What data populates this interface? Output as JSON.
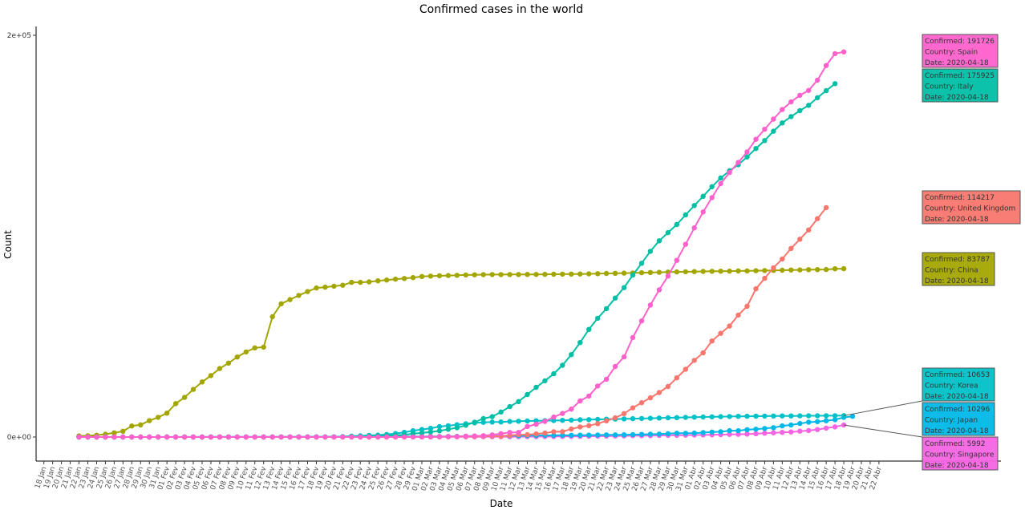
{
  "chart_data": {
    "type": "line",
    "title": "Confirmed cases in the world",
    "xlabel": "Date",
    "ylabel": "Count",
    "ylim": [
      -12000,
      205000
    ],
    "yticks": [
      {
        "value": 0,
        "label": "0e+00"
      },
      {
        "value": 200000,
        "label": "2e+05"
      }
    ],
    "x_tick_labels": [
      "18 Jan",
      "19 Jan",
      "20 Jan",
      "21 Jan",
      "22 Jan",
      "23 Jan",
      "24 Jan",
      "25 Jan",
      "26 Jan",
      "27 Jan",
      "28 Jan",
      "29 Jan",
      "30 Jan",
      "31 Jan",
      "01 Fev",
      "02 Fev",
      "03 Fev",
      "04 Fev",
      "05 Fev",
      "06 Fev",
      "07 Fev",
      "08 Fev",
      "09 Fev",
      "10 Fev",
      "11 Fev",
      "12 Fev",
      "13 Fev",
      "14 Fev",
      "15 Fev",
      "16 Fev",
      "17 Fev",
      "18 Fev",
      "19 Fev",
      "20 Fev",
      "21 Fev",
      "22 Fev",
      "23 Fev",
      "24 Fev",
      "25 Fev",
      "26 Fev",
      "27 Fev",
      "28 Fev",
      "29 Fev",
      "01 Mar",
      "02 Mar",
      "03 Mar",
      "04 Mar",
      "05 Mar",
      "06 Mar",
      "07 Mar",
      "08 Mar",
      "09 Mar",
      "10 Mar",
      "11 Mar",
      "12 Mar",
      "13 Mar",
      "14 Mar",
      "15 Mar",
      "16 Mar",
      "17 Mar",
      "18 Mar",
      "19 Mar",
      "20 Mar",
      "21 Mar",
      "22 Mar",
      "23 Mar",
      "24 Mar",
      "25 Mar",
      "26 Mar",
      "27 Mar",
      "28 Mar",
      "29 Mar",
      "30 Mar",
      "31 Mar",
      "01 Abr",
      "02 Abr",
      "03 Abr",
      "04 Abr",
      "05 Abr",
      "06 Abr",
      "07 Abr",
      "08 Abr",
      "09 Abr",
      "10 Abr",
      "11 Abr",
      "12 Abr",
      "13 Abr",
      "14 Abr",
      "15 Abr",
      "16 Abr",
      "17 Abr",
      "18 Abr",
      "19 Abr",
      "20 Abr",
      "21 Abr",
      "22 Abr"
    ],
    "x_start": "22 Jan",
    "grid": false,
    "series": [
      {
        "name": "China",
        "color": "#a3a500",
        "values": [
          548,
          643,
          920,
          1406,
          2075,
          2877,
          5509,
          6087,
          8141,
          9802,
          11891,
          16630,
          19716,
          23707,
          27440,
          30587,
          34110,
          36814,
          39829,
          42354,
          44386,
          44759,
          59895,
          66358,
          68413,
          70513,
          72434,
          74211,
          74619,
          75077,
          75550,
          77001,
          77022,
          77241,
          77754,
          78166,
          78600,
          78928,
          79356,
          79932,
          80136,
          80261,
          80386,
          80537,
          80690,
          80770,
          80823,
          80860,
          80887,
          80921,
          80932,
          80945,
          80977,
          81003,
          81033,
          81058,
          81102,
          81156,
          81250,
          81305,
          81435,
          81498,
          81591,
          81661,
          81782,
          81897,
          81999,
          82122,
          82198,
          82279,
          82361,
          82432,
          82511,
          82543,
          82602,
          82665,
          82718,
          82809,
          82883,
          82941,
          83014,
          83134,
          83213,
          83306,
          83356,
          83403,
          83760,
          83787
        ],
        "tooltip": {
          "confirmed": "Confirmed:  83787",
          "country": "Country: China",
          "date": "Date: 2020-04-18"
        }
      },
      {
        "name": "Italy",
        "color": "#00bfa5",
        "values": [
          0,
          0,
          0,
          0,
          0,
          0,
          0,
          0,
          0,
          2,
          2,
          2,
          2,
          2,
          2,
          2,
          3,
          3,
          3,
          3,
          3,
          3,
          3,
          3,
          3,
          3,
          3,
          3,
          3,
          20,
          62,
          155,
          229,
          322,
          453,
          655,
          888,
          1128,
          1694,
          2036,
          2502,
          3089,
          3858,
          4636,
          5883,
          7375,
          9172,
          10149,
          12462,
          15113,
          17660,
          21157,
          24747,
          27980,
          31506,
          35713,
          41035,
          47021,
          53578,
          59138,
          63927,
          69176,
          74386,
          80589,
          86498,
          92472,
          97689,
          101739,
          105792,
          110574,
          115242,
          119827,
          124632,
          128948,
          132547,
          135586,
          139422,
          143626,
          147577,
          152271,
          156363,
          159516,
          162488,
          165155,
          168941,
          172434,
          175925
        ],
        "tooltip": {
          "confirmed": "Confirmed:  175925",
          "country": "Country: Italy",
          "date": "Date: 2020-04-18"
        }
      },
      {
        "name": "Spain",
        "color": "#ff61cc",
        "values": [
          0,
          0,
          0,
          0,
          0,
          0,
          0,
          0,
          0,
          0,
          1,
          1,
          1,
          1,
          1,
          1,
          1,
          1,
          1,
          2,
          2,
          2,
          2,
          2,
          2,
          2,
          2,
          2,
          2,
          2,
          2,
          2,
          2,
          2,
          6,
          13,
          15,
          32,
          45,
          84,
          120,
          165,
          222,
          259,
          400,
          500,
          673,
          1073,
          1695,
          2277,
          2277,
          5232,
          6391,
          7798,
          9942,
          11748,
          13910,
          17963,
          20410,
          25374,
          28768,
          35136,
          39885,
          49515,
          57786,
          65719,
          73235,
          80110,
          87956,
          95923,
          104118,
          112065,
          119199,
          126168,
          131646,
          136675,
          141942,
          148220,
          153222,
          158273,
          163027,
          166831,
          170099,
          172541,
          177644,
          184948,
          190839,
          191726
        ],
        "tooltip": {
          "confirmed": "Confirmed:  191726",
          "country": "Country: Spain",
          "date": "Date: 2020-04-18"
        }
      },
      {
        "name": "United Kingdom",
        "color": "#f8766d",
        "values": [
          0,
          0,
          0,
          0,
          0,
          0,
          0,
          0,
          0,
          2,
          2,
          2,
          2,
          2,
          2,
          2,
          3,
          3,
          8,
          8,
          9,
          9,
          9,
          9,
          9,
          9,
          9,
          9,
          9,
          9,
          13,
          13,
          13,
          13,
          13,
          19,
          23,
          35,
          40,
          51,
          85,
          115,
          163,
          206,
          273,
          321,
          382,
          456,
          456,
          798,
          1140,
          1140,
          1543,
          1950,
          2626,
          2689,
          3983,
          5018,
          5683,
          6650,
          8077,
          9529,
          11658,
          14543,
          17089,
          19522,
          22141,
          25150,
          29474,
          33718,
          38168,
          41903,
          47806,
          51608,
          55242,
          60733,
          65077,
          73758,
          78991,
          84279,
          88621,
          93873,
          98476,
          103093,
          108692,
          114217
        ],
        "tooltip": {
          "confirmed": "Confirmed:  114217",
          "country": "Country: United Kingdom",
          "date": "Date: 2020-04-18"
        }
      },
      {
        "name": "Korea",
        "color": "#00c1c8",
        "values": [
          1,
          1,
          2,
          2,
          3,
          4,
          4,
          4,
          4,
          11,
          12,
          15,
          15,
          16,
          19,
          23,
          24,
          24,
          25,
          27,
          28,
          28,
          28,
          28,
          28,
          29,
          30,
          31,
          31,
          104,
          204,
          433,
          602,
          833,
          977,
          1261,
          1766,
          2337,
          3150,
          3736,
          4335,
          5186,
          5621,
          6088,
          6593,
          7041,
          7314,
          7478,
          7513,
          7755,
          7869,
          7979,
          8086,
          8162,
          8236,
          8320,
          8413,
          8565,
          8652,
          8799,
          8897,
          8961,
          9037,
          9137,
          9241,
          9332,
          9478,
          9583,
          9661,
          9786,
          9887,
          9976,
          10062,
          10156,
          10237,
          10284,
          10331,
          10384,
          10423,
          10450,
          10480,
          10512,
          10537,
          10564,
          10591,
          10613,
          10635,
          10653
        ],
        "tooltip": {
          "confirmed": "Confirmed:  10653",
          "country": "Country: Korea",
          "date": "Date: 2020-04-18"
        }
      },
      {
        "name": "Japan",
        "color": "#00b8e7",
        "values": [
          2,
          1,
          2,
          2,
          4,
          4,
          7,
          7,
          11,
          15,
          20,
          20,
          20,
          22,
          22,
          45,
          25,
          25,
          26,
          26,
          26,
          28,
          28,
          29,
          43,
          59,
          66,
          74,
          84,
          94,
          105,
          122,
          147,
          159,
          170,
          189,
          214,
          228,
          241,
          256,
          274,
          293,
          331,
          360,
          420,
          461,
          502,
          511,
          581,
          639,
          639,
          701,
          773,
          839,
          825,
          878,
          889,
          924,
          963,
          1007,
          1086,
          1086,
          1128,
          1193,
          1307,
          1387,
          1468,
          1693,
          1866,
          1866,
          1953,
          2178,
          2495,
          2617,
          3139,
          3139,
          3654,
          3906,
          4257,
          4667,
          5530,
          6005,
          6748,
          7370,
          7645,
          8100,
          8626,
          9787,
          10296
        ],
        "tooltip": {
          "confirmed": "Confirmed:  10296",
          "country": "Country: Japan",
          "date": "Date: 2020-04-18"
        }
      },
      {
        "name": "Singapore",
        "color": "#f564e3",
        "values": [
          0,
          1,
          3,
          3,
          4,
          5,
          7,
          7,
          10,
          13,
          16,
          18,
          18,
          24,
          28,
          28,
          30,
          33,
          40,
          45,
          47,
          50,
          58,
          67,
          72,
          75,
          77,
          81,
          84,
          84,
          85,
          85,
          89,
          89,
          91,
          93,
          93,
          93,
          102,
          106,
          108,
          110,
          110,
          117,
          130,
          138,
          150,
          150,
          160,
          178,
          178,
          200,
          212,
          226,
          243,
          266,
          313,
          345,
          385,
          432,
          455,
          509,
          558,
          631,
          683,
          732,
          802,
          844,
          879,
          926,
          1000,
          1049,
          1114,
          1189,
          1309,
          1375,
          1481,
          1623,
          1910,
          2108,
          2299,
          2532,
          2918,
          3252,
          3699,
          4427,
          5050,
          5992
        ],
        "tooltip": {
          "confirmed": "Confirmed:  5992",
          "country": "Country: Singapore",
          "date": "Date: 2020-04-18"
        }
      }
    ]
  }
}
